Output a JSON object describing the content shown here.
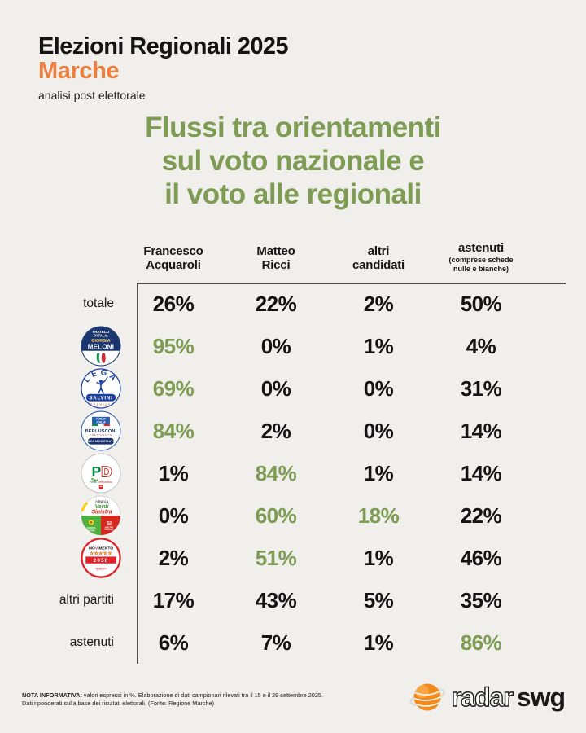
{
  "header": {
    "title": "Elezioni Regionali 2025",
    "region": "Marche",
    "subtitle": "analisi post elettorale"
  },
  "main_title": "Flussi tra orientamenti\nsul voto nazionale e\nil voto alle regionali",
  "table": {
    "columns": [
      {
        "label": "Francesco\nAcquaroli",
        "sublabel": ""
      },
      {
        "label": "Matteo\nRicci",
        "sublabel": ""
      },
      {
        "label": "altri\ncandidati",
        "sublabel": ""
      },
      {
        "label": "astenuti",
        "sublabel": "(comprese schede\nnulle e bianche)"
      }
    ],
    "rows": [
      {
        "id": "totale",
        "label": "totale",
        "logo": null,
        "values": [
          {
            "v": "26%",
            "g": false
          },
          {
            "v": "22%",
            "g": false
          },
          {
            "v": "2%",
            "g": false
          },
          {
            "v": "50%",
            "g": false
          }
        ]
      },
      {
        "id": "fdi",
        "label": "Fratelli d'Italia - Giorgia Meloni",
        "logo": "fratelli-ditalia",
        "values": [
          {
            "v": "95%",
            "g": true
          },
          {
            "v": "0%",
            "g": false
          },
          {
            "v": "1%",
            "g": false
          },
          {
            "v": "4%",
            "g": false
          }
        ]
      },
      {
        "id": "lega",
        "label": "Lega - Salvini Premier",
        "logo": "lega-salvini",
        "values": [
          {
            "v": "69%",
            "g": true
          },
          {
            "v": "0%",
            "g": false
          },
          {
            "v": "0%",
            "g": false
          },
          {
            "v": "31%",
            "g": false
          }
        ]
      },
      {
        "id": "fi",
        "label": "Forza Italia - Berlusconi - Noi Moderati",
        "logo": "forza-italia",
        "values": [
          {
            "v": "84%",
            "g": true
          },
          {
            "v": "2%",
            "g": false
          },
          {
            "v": "0%",
            "g": false
          },
          {
            "v": "14%",
            "g": false
          }
        ]
      },
      {
        "id": "pd",
        "label": "Partito Democratico",
        "logo": "partito-democratico",
        "values": [
          {
            "v": "1%",
            "g": false
          },
          {
            "v": "84%",
            "g": true
          },
          {
            "v": "1%",
            "g": false
          },
          {
            "v": "14%",
            "g": false
          }
        ]
      },
      {
        "id": "avs",
        "label": "Alleanza Verdi Sinistra",
        "logo": "alleanza-verdi-sinistra",
        "values": [
          {
            "v": "0%",
            "g": false
          },
          {
            "v": "60%",
            "g": true
          },
          {
            "v": "18%",
            "g": true
          },
          {
            "v": "22%",
            "g": false
          }
        ]
      },
      {
        "id": "m5s",
        "label": "Movimento 5 Stelle 2050",
        "logo": "movimento-5-stelle",
        "values": [
          {
            "v": "2%",
            "g": false
          },
          {
            "v": "51%",
            "g": true
          },
          {
            "v": "1%",
            "g": false
          },
          {
            "v": "46%",
            "g": false
          }
        ]
      },
      {
        "id": "altri-partiti",
        "label": "altri partiti",
        "logo": null,
        "values": [
          {
            "v": "17%",
            "g": false
          },
          {
            "v": "43%",
            "g": false
          },
          {
            "v": "5%",
            "g": false
          },
          {
            "v": "35%",
            "g": false
          }
        ]
      },
      {
        "id": "astenuti",
        "label": "astenuti",
        "logo": null,
        "values": [
          {
            "v": "6%",
            "g": false
          },
          {
            "v": "7%",
            "g": false
          },
          {
            "v": "1%",
            "g": false
          },
          {
            "v": "86%",
            "g": true
          }
        ]
      }
    ]
  },
  "logos": {
    "fratelli-ditalia": {
      "party1": "FRATELLI",
      "party2": "D'ITALIA",
      "leader1": "GIORGIA",
      "leader2": "MELONI"
    },
    "lega-salvini": {
      "party": "LEGA",
      "leader": "SALVINI",
      "sub": "PREMIER"
    },
    "forza-italia": {
      "flag1": "FORZA",
      "flag2": "ITALIA",
      "leader": "BERLUSCONI",
      "sub": "PRESIDENTE",
      "band": "NOI MODERATI"
    },
    "partito-democratico": {
      "letter_p": "P",
      "letter_d": "D",
      "name1": "Partito",
      "name2": "Democratico"
    },
    "alleanza-verdi-sinistra": {
      "top": "Alleanza",
      "mid": "Verdi",
      "bottom": "Sinistra",
      "left1": "EUROPA",
      "left2": "VERDE",
      "right_big": "SI",
      "right1": "SINISTRA",
      "right2": "ITALIANA"
    },
    "movimento-5-stelle": {
      "word_pre": "MO",
      "word_v": "V",
      "word_post": "IMENTO",
      "stars": "★★★★★",
      "band": "2050",
      "sub": "«pace»"
    }
  },
  "footer": {
    "note_label": "NOTA INFORMATIVA:",
    "note_text": " valori espressi in %. Elaborazione di dati campionari rilevati tra il 15 e il 29 settembre 2025.\nDati riponderati sulla base dei risultati elettorali. (Fonte: Regione Marche)",
    "brand_radar": "radar",
    "brand_swg": "swg"
  },
  "colors": {
    "accent_green": "#7d9b52",
    "accent_orange": "#ee7e3d",
    "text_black": "#161616",
    "background": "#f0efec",
    "table_line": "#4d4d4d",
    "brand_orange": "#f28a1e"
  },
  "chart_data": {
    "type": "table",
    "title": "Flussi tra orientamenti sul voto nazionale e il voto alle regionali",
    "subtitle": "Elezioni Regionali 2025 Marche - analisi post elettorale",
    "unit": "%",
    "columns": [
      "Francesco Acquaroli",
      "Matteo Ricci",
      "altri candidati",
      "astenuti (comprese schede nulle e bianche)"
    ],
    "rows": [
      "totale",
      "Fratelli d'Italia - Giorgia Meloni",
      "Lega - Salvini Premier",
      "Forza Italia - Berlusconi - Noi Moderati",
      "Partito Democratico",
      "Alleanza Verdi Sinistra",
      "Movimento 5 Stelle 2050",
      "altri partiti",
      "astenuti"
    ],
    "values_pct": [
      [
        26,
        22,
        2,
        50
      ],
      [
        95,
        0,
        1,
        4
      ],
      [
        69,
        0,
        0,
        31
      ],
      [
        84,
        2,
        0,
        14
      ],
      [
        1,
        84,
        1,
        14
      ],
      [
        0,
        60,
        18,
        22
      ],
      [
        2,
        51,
        1,
        46
      ],
      [
        17,
        43,
        5,
        35
      ],
      [
        6,
        7,
        1,
        86
      ]
    ],
    "highlighted_cells_green": [
      [
        1,
        0
      ],
      [
        2,
        0
      ],
      [
        3,
        0
      ],
      [
        4,
        1
      ],
      [
        5,
        1
      ],
      [
        5,
        2
      ],
      [
        6,
        1
      ],
      [
        8,
        3
      ]
    ],
    "source": "NOTA INFORMATIVA: valori espressi in %. Elaborazione di dati campionari rilevati tra il 15 e il 29 settembre 2025. Dati riponderati sulla base dei risultati elettorali. (Fonte: Regione Marche)"
  }
}
